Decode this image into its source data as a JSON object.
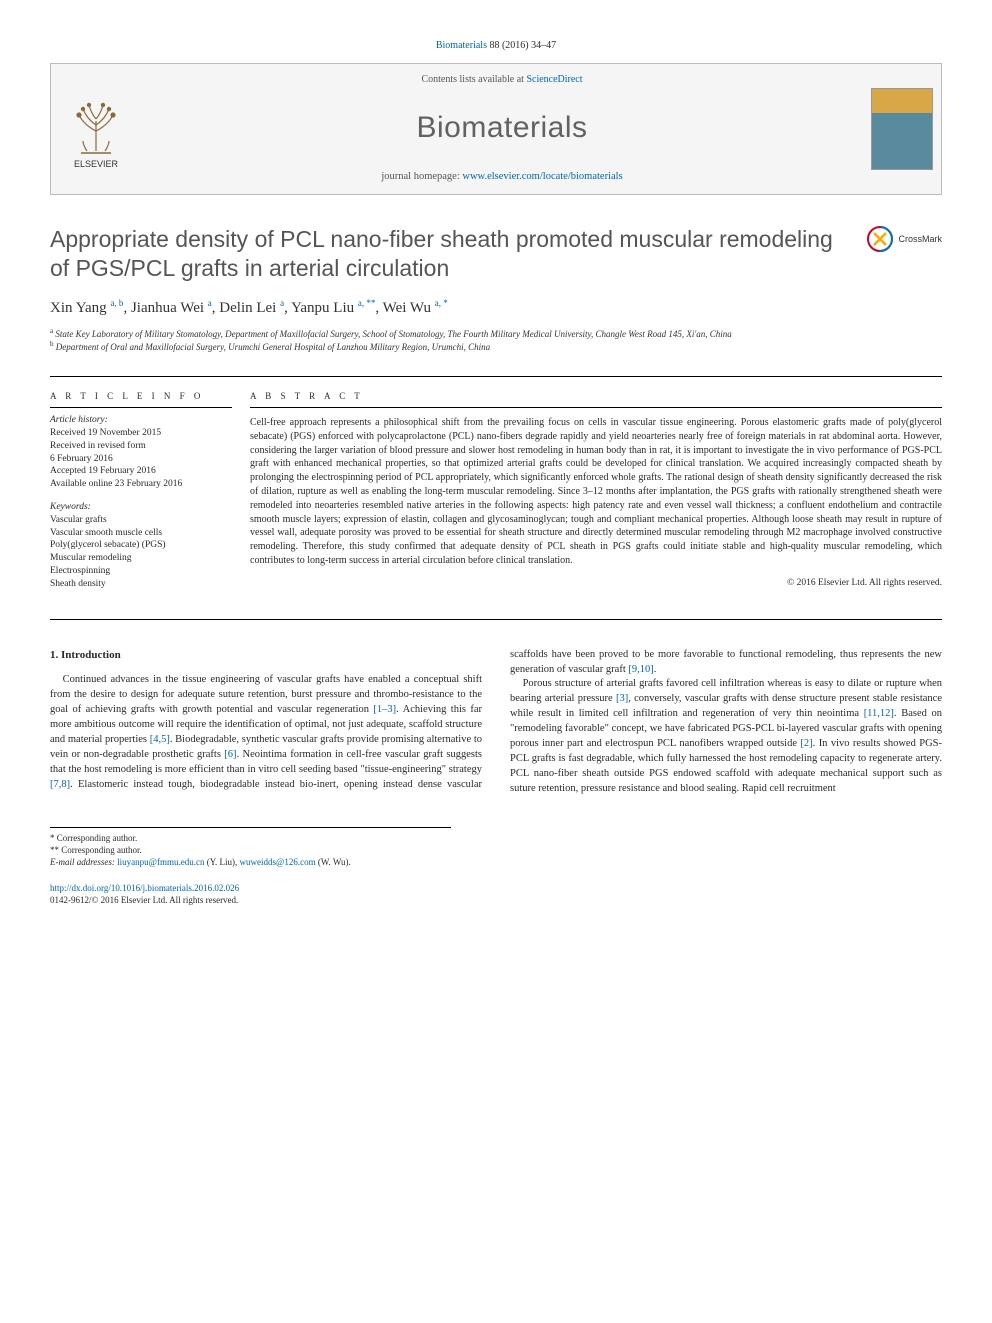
{
  "citation": {
    "journal": "Biomaterials",
    "vol_pages": "88 (2016) 34–47"
  },
  "journal_box": {
    "contents_prefix": "Contents lists available at ",
    "contents_link": "ScienceDirect",
    "title": "Biomaterials",
    "homepage_prefix": "journal homepage: ",
    "homepage_link": "www.elsevier.com/locate/biomaterials",
    "publisher_name": "ELSEVIER"
  },
  "article": {
    "title": "Appropriate density of PCL nano-fiber sheath promoted muscular remodeling of PGS/PCL grafts in arterial circulation",
    "crossmark_label": "CrossMark"
  },
  "authors": [
    {
      "name": "Xin Yang",
      "sup": "a, b"
    },
    {
      "name": "Jianhua Wei",
      "sup": "a"
    },
    {
      "name": "Delin Lei",
      "sup": "a"
    },
    {
      "name": "Yanpu Liu",
      "sup": "a, **"
    },
    {
      "name": "Wei Wu",
      "sup": "a, *"
    }
  ],
  "affiliations": [
    {
      "sup": "a",
      "text": "State Key Laboratory of Military Stomatology, Department of Maxillofacial Surgery, School of Stomatology, The Fourth Military Medical University, Changle West Road 145, Xi'an, China"
    },
    {
      "sup": "b",
      "text": "Department of Oral and Maxillofacial Surgery, Urumchi General Hospital of Lanzhou Military Region, Urumchi, China"
    }
  ],
  "article_info": {
    "heading": "A R T I C L E   I N F O",
    "history_label": "Article history:",
    "history": [
      "Received 19 November 2015",
      "Received in revised form",
      "6 February 2016",
      "Accepted 19 February 2016",
      "Available online 23 February 2016"
    ],
    "keywords_label": "Keywords:",
    "keywords": [
      "Vascular grafts",
      "Vascular smooth muscle cells",
      "Poly(glycerol sebacate) (PGS)",
      "Muscular remodeling",
      "Electrospinning",
      "Sheath density"
    ]
  },
  "abstract": {
    "heading": "A B S T R A C T",
    "text": "Cell-free approach represents a philosophical shift from the prevailing focus on cells in vascular tissue engineering. Porous elastomeric grafts made of poly(glycerol sebacate) (PGS) enforced with polycaprolactone (PCL) nano-fibers degrade rapidly and yield neoarteries nearly free of foreign materials in rat abdominal aorta. However, considering the larger variation of blood pressure and slower host remodeling in human body than in rat, it is important to investigate the in vivo performance of PGS-PCL graft with enhanced mechanical properties, so that optimized arterial grafts could be developed for clinical translation. We acquired increasingly compacted sheath by prolonging the electrospinning period of PCL appropriately, which significantly enforced whole grafts. The rational design of sheath density significantly decreased the risk of dilation, rupture as well as enabling the long-term muscular remodeling. Since 3–12 months after implantation, the PGS grafts with rationally strengthened sheath were remodeled into neoarteries resembled native arteries in the following aspects: high patency rate and even vessel wall thickness; a confluent endothelium and contractile smooth muscle layers; expression of elastin, collagen and glycosaminoglycan; tough and compliant mechanical properties. Although loose sheath may result in rupture of vessel wall, adequate porosity was proved to be essential for sheath structure and directly determined muscular remodeling through M2 macrophage involved constructive remodeling. Therefore, this study confirmed that adequate density of PCL sheath in PGS grafts could initiate stable and high-quality muscular remodeling, which contributes to long-term success in arterial circulation before clinical translation.",
    "copyright": "© 2016 Elsevier Ltd. All rights reserved."
  },
  "intro": {
    "heading": "1. Introduction",
    "p1_a": "Continued advances in the tissue engineering of vascular grafts have enabled a conceptual shift from the desire to design for adequate suture retention, burst pressure and thrombo-resistance to the goal of achieving grafts with growth potential and vascular regeneration ",
    "p1_ref1": "[1–3]",
    "p1_b": ". Achieving this far more ambitious outcome will require the identification of optimal, not just adequate, scaffold structure and material properties ",
    "p1_ref2": "[4,5]",
    "p1_c": ". Biodegradable, synthetic vascular grafts provide promising alternative to vein or non-degradable prosthetic grafts ",
    "p1_ref3": "[6]",
    "p1_d": ". Neointima formation in cell-free vascular graft suggests that the host remodeling is more efficient than in vitro cell seeding based \"tissue-engineering\" strategy ",
    "p1_ref4": "[7,8]",
    "p1_e": ". Elastomeric instead tough, biodegradable instead bio-inert, opening instead dense vascular scaffolds have been proved to be more favorable to functional remodeling, thus represents the new generation of vascular graft ",
    "p1_ref5": "[9,10]",
    "p1_f": ".",
    "p2_a": "Porous structure of arterial grafts favored cell infiltration whereas is easy to dilate or rupture when bearing arterial pressure ",
    "p2_ref1": "[3]",
    "p2_b": ", conversely, vascular grafts with dense structure present stable resistance while result in limited cell infiltration and regeneration of very thin neointima ",
    "p2_ref2": "[11,12]",
    "p2_c": ". Based on \"remodeling favorable\" concept, we have fabricated PGS-PCL bi-layered vascular grafts with opening porous inner part and electrospun PCL nanofibers wrapped outside ",
    "p2_ref3": "[2]",
    "p2_d": ". In vivo results showed PGS-PCL grafts is fast degradable, which fully harnessed the host remodeling capacity to regenerate artery. PCL nano-fiber sheath outside PGS endowed scaffold with adequate mechanical support such as suture retention, pressure resistance and blood sealing. Rapid cell recruitment"
  },
  "footnotes": {
    "c1": "* Corresponding author.",
    "c2": "** Corresponding author.",
    "email_label": "E-mail addresses:",
    "email1": "liuyanpu@fmmu.edu.cn",
    "email1_who": " (Y. Liu), ",
    "email2": "wuweidds@126.com",
    "email2_who": " (W. Wu)."
  },
  "doi": {
    "url": "http://dx.doi.org/10.1016/j.biomaterials.2016.02.026",
    "issn_line": "0142-9612/© 2016 Elsevier Ltd. All rights reserved."
  },
  "colors": {
    "link": "#0066b3",
    "title_gray": "#555555",
    "text": "#2a2a2a"
  }
}
